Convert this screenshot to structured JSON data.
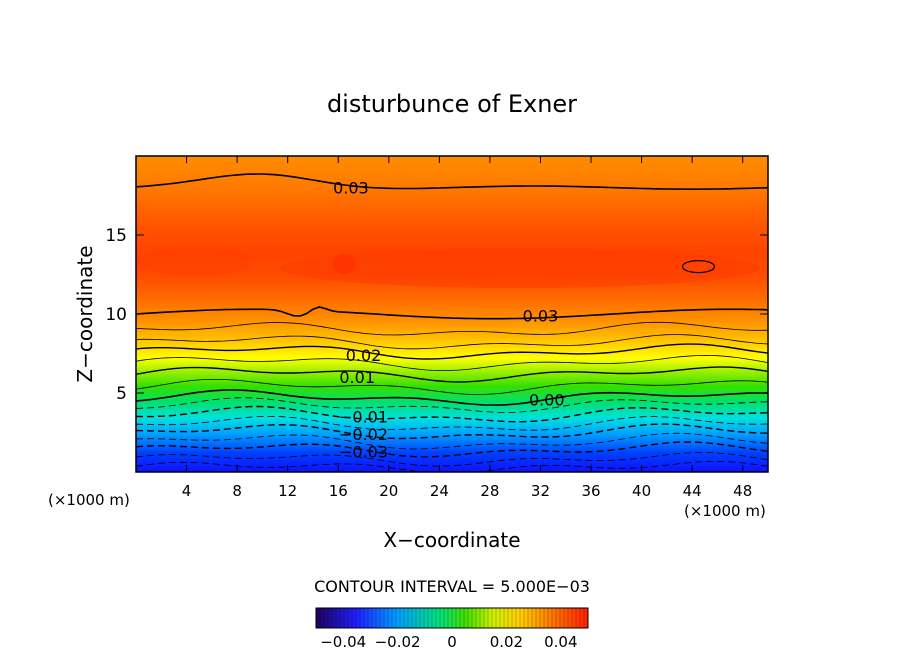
{
  "chart_data": {
    "type": "heatmap",
    "title": "disturbunce of Exner",
    "xlabel": "X−coordinate",
    "ylabel": "Z−coordinate",
    "x_unit_left": "(×1000 m)",
    "x_unit_right": "(×1000 m)",
    "xlim": [
      0,
      50
    ],
    "ylim": [
      0,
      20
    ],
    "x_ticks": [
      4,
      8,
      12,
      16,
      20,
      24,
      28,
      32,
      36,
      40,
      44,
      48
    ],
    "y_ticks": [
      5,
      10,
      15
    ],
    "contour_interval_label": "CONTOUR INTERVAL = 5.000E−03",
    "contour_labels": [
      {
        "text": "0.03",
        "x": 17.0,
        "z": 18.0
      },
      {
        "text": "0.03",
        "x": 32.0,
        "z": 9.9
      },
      {
        "text": "0.02",
        "x": 18.0,
        "z": 7.4
      },
      {
        "text": "0.01",
        "x": 17.5,
        "z": 6.0
      },
      {
        "text": "0.00",
        "x": 32.5,
        "z": 4.6
      },
      {
        "text": "−0.01",
        "x": 18.0,
        "z": 3.5
      },
      {
        "text": "−0.02",
        "x": 18.0,
        "z": 2.4
      },
      {
        "text": "−0.03",
        "x": 18.0,
        "z": 1.3
      }
    ],
    "colorbar": {
      "range": [
        -0.05,
        0.05
      ],
      "ticks": [
        "−0.04",
        "−0.02",
        "0",
        "0.02",
        "0.04"
      ]
    },
    "grid": false,
    "colors": {
      "max": "#ff2a00",
      "high": "#ff8a00",
      "mid_high": "#ffff00",
      "zero": "#20e000",
      "low": "#00e0ff",
      "min": "#1010ff",
      "bar_min": "#200060"
    }
  }
}
